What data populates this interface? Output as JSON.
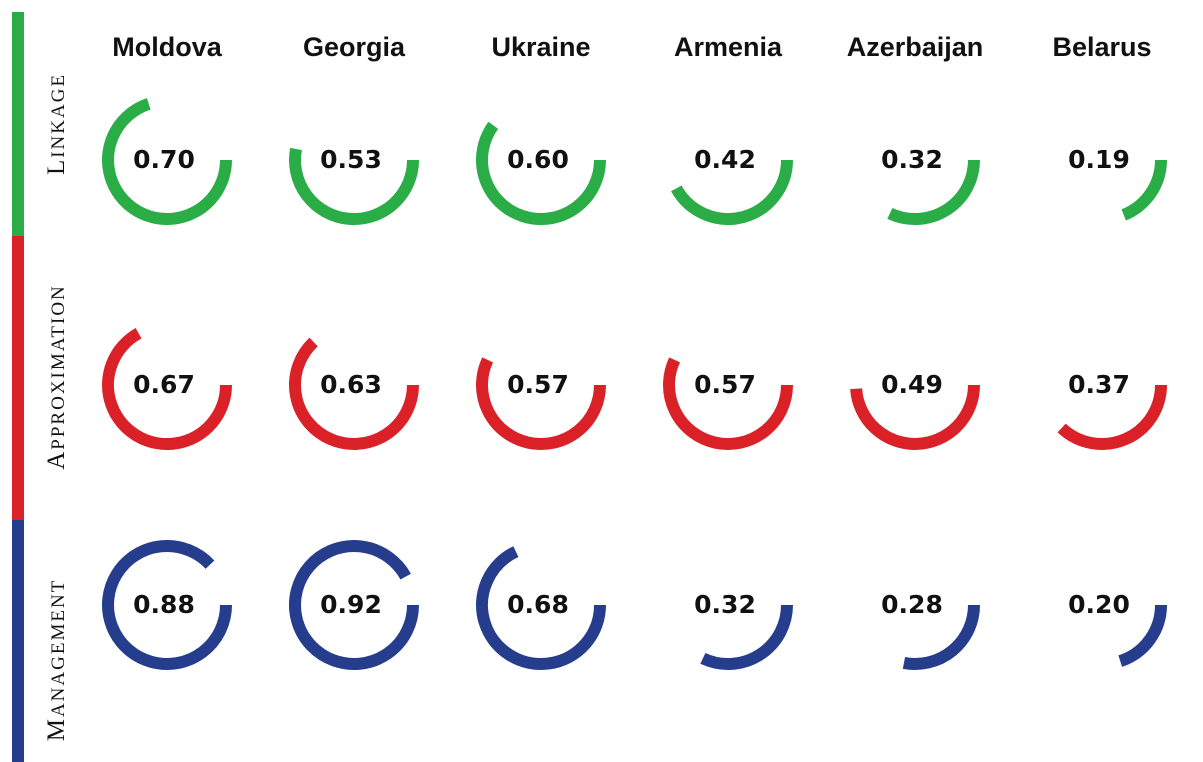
{
  "chart_data": {
    "type": "radial",
    "countries": [
      "Moldova",
      "Georgia",
      "Ukraine",
      "Armenia",
      "Azerbaijan",
      "Belarus"
    ],
    "series": [
      {
        "name": "Linkage",
        "color": "#2aac47",
        "values": [
          0.7,
          0.53,
          0.6,
          0.42,
          0.32,
          0.19
        ],
        "labels": [
          "0.70",
          "0.53",
          "0.60",
          "0.42",
          "0.32",
          "0.19"
        ]
      },
      {
        "name": "Approximation",
        "color": "#da2128",
        "values": [
          0.67,
          0.63,
          0.57,
          0.57,
          0.49,
          0.37
        ],
        "labels": [
          "0.67",
          "0.63",
          "0.57",
          "0.57",
          "0.49",
          "0.37"
        ]
      },
      {
        "name": "Management",
        "color": "#253d8c",
        "values": [
          0.88,
          0.92,
          0.68,
          0.32,
          0.28,
          0.2
        ],
        "labels": [
          "0.88",
          "0.92",
          "0.68",
          "0.32",
          "0.28",
          "0.20"
        ]
      }
    ],
    "value_range": [
      0,
      1
    ]
  }
}
